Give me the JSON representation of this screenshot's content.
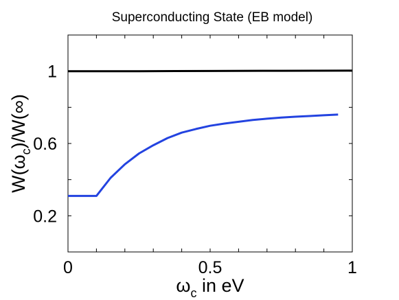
{
  "chart_data": {
    "type": "line",
    "title": "Superconducting State (EB model)",
    "xlabel": {
      "symbol": "ω",
      "subscript": "c",
      "suffix": " in eV"
    },
    "ylabel": {
      "part1": "W(ω",
      "subscript": "c",
      "part2": ")/W(∞)"
    },
    "xlim": [
      0,
      1
    ],
    "ylim": [
      0,
      1.2
    ],
    "xticks": [
      {
        "value": 0,
        "label": "0"
      },
      {
        "value": 0.5,
        "label": "0.5"
      },
      {
        "value": 1,
        "label": "1"
      }
    ],
    "yticks": [
      {
        "value": 0.2,
        "label": "0.2"
      },
      {
        "value": 0.6,
        "label": "0.6"
      },
      {
        "value": 1,
        "label": "1"
      }
    ],
    "minor_xticks": [
      0.1,
      0.2,
      0.3,
      0.4,
      0.6,
      0.7,
      0.8,
      0.9
    ],
    "minor_yticks": [
      0.4,
      0.8
    ],
    "grid": false,
    "series": [
      {
        "color": "#000000",
        "x": [
          0,
          0.25,
          0.5,
          0.75,
          1.0
        ],
        "y": [
          1.0,
          1.0,
          1.001,
          1.002,
          1.003
        ]
      },
      {
        "color": "#2343e0",
        "x": [
          0,
          0.05,
          0.1,
          0.12,
          0.15,
          0.2,
          0.25,
          0.3,
          0.35,
          0.4,
          0.45,
          0.5,
          0.55,
          0.6,
          0.65,
          0.7,
          0.75,
          0.8,
          0.85,
          0.9,
          0.95
        ],
        "y": [
          0.31,
          0.31,
          0.31,
          0.35,
          0.41,
          0.485,
          0.545,
          0.59,
          0.63,
          0.66,
          0.68,
          0.698,
          0.71,
          0.72,
          0.73,
          0.737,
          0.743,
          0.748,
          0.752,
          0.756,
          0.76
        ]
      }
    ]
  }
}
